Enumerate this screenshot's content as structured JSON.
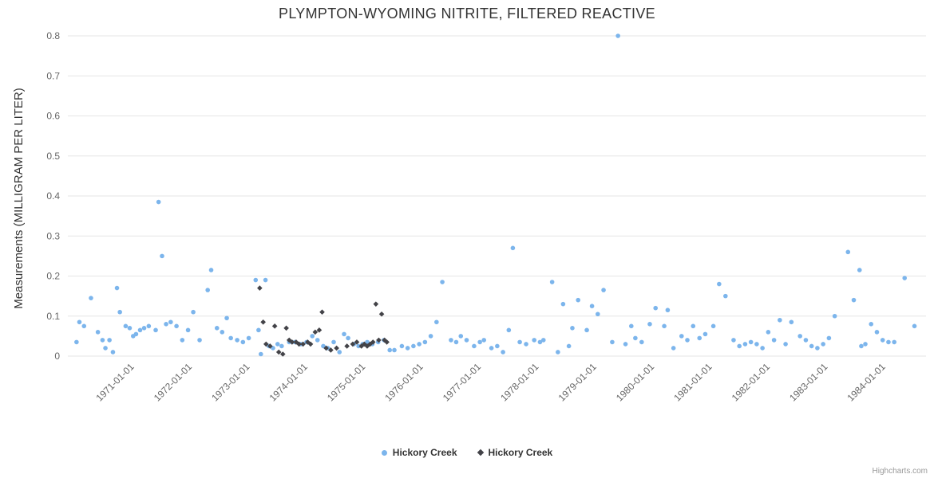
{
  "credits": "Highcharts.com",
  "colors": {
    "grid": "#e6e6e6",
    "tick_label": "#666666",
    "title": "#333333",
    "credits": "#999999"
  },
  "legend": {
    "items": [
      {
        "label": "Hickory Creek",
        "marker": "circle",
        "color": "#7cb5ec"
      },
      {
        "label": "Hickory Creek",
        "marker": "diamond",
        "color": "#434348"
      }
    ]
  },
  "chart_data": {
    "type": "scatter",
    "title": "PLYMPTON-WYOMING NITRITE, FILTERED REACTIVE",
    "xlabel": "",
    "ylabel": "Measurements (MILLIGRAM PER LITER)",
    "ylim": [
      0,
      0.8
    ],
    "yticks": [
      0,
      0.1,
      0.2,
      0.3,
      0.4,
      0.5,
      0.6,
      0.7,
      0.8
    ],
    "xlim": [
      1969.9,
      1984.75
    ],
    "grid": true,
    "legend_position": "bottom",
    "xticks": [
      {
        "x": 1971,
        "label": "1971-01-01"
      },
      {
        "x": 1972,
        "label": "1972-01-01"
      },
      {
        "x": 1973,
        "label": "1973-01-01"
      },
      {
        "x": 1974,
        "label": "1974-01-01"
      },
      {
        "x": 1975,
        "label": "1975-01-01"
      },
      {
        "x": 1976,
        "label": "1976-01-01"
      },
      {
        "x": 1977,
        "label": "1977-01-01"
      },
      {
        "x": 1978,
        "label": "1978-01-01"
      },
      {
        "x": 1979,
        "label": "1979-01-01"
      },
      {
        "x": 1980,
        "label": "1980-01-01"
      },
      {
        "x": 1981,
        "label": "1981-01-01"
      },
      {
        "x": 1982,
        "label": "1982-01-01"
      },
      {
        "x": 1983,
        "label": "1983-01-01"
      },
      {
        "x": 1984,
        "label": "1984-01-01"
      }
    ],
    "series": [
      {
        "name": "Hickory Creek",
        "marker": "circle",
        "color": "#7cb5ec",
        "points": [
          [
            1970.05,
            0.035
          ],
          [
            1970.1,
            0.085
          ],
          [
            1970.18,
            0.075
          ],
          [
            1970.3,
            0.145
          ],
          [
            1970.42,
            0.06
          ],
          [
            1970.5,
            0.04
          ],
          [
            1970.55,
            0.02
          ],
          [
            1970.62,
            0.04
          ],
          [
            1970.68,
            0.01
          ],
          [
            1970.75,
            0.17
          ],
          [
            1970.8,
            0.11
          ],
          [
            1970.9,
            0.075
          ],
          [
            1970.97,
            0.07
          ],
          [
            1971.03,
            0.05
          ],
          [
            1971.08,
            0.055
          ],
          [
            1971.15,
            0.065
          ],
          [
            1971.22,
            0.07
          ],
          [
            1971.3,
            0.075
          ],
          [
            1971.42,
            0.065
          ],
          [
            1971.47,
            0.385
          ],
          [
            1971.53,
            0.25
          ],
          [
            1971.6,
            0.08
          ],
          [
            1971.68,
            0.085
          ],
          [
            1971.78,
            0.075
          ],
          [
            1971.88,
            0.04
          ],
          [
            1971.98,
            0.065
          ],
          [
            1972.07,
            0.11
          ],
          [
            1972.18,
            0.04
          ],
          [
            1972.32,
            0.165
          ],
          [
            1972.38,
            0.215
          ],
          [
            1972.48,
            0.07
          ],
          [
            1972.57,
            0.06
          ],
          [
            1972.65,
            0.095
          ],
          [
            1972.72,
            0.045
          ],
          [
            1972.83,
            0.04
          ],
          [
            1972.93,
            0.035
          ],
          [
            1973.03,
            0.045
          ],
          [
            1973.15,
            0.19
          ],
          [
            1973.2,
            0.065
          ],
          [
            1973.24,
            0.005
          ],
          [
            1973.32,
            0.19
          ],
          [
            1973.38,
            0.025
          ],
          [
            1973.45,
            0.02
          ],
          [
            1973.53,
            0.03
          ],
          [
            1973.6,
            0.025
          ],
          [
            1973.73,
            0.035
          ],
          [
            1973.83,
            0.035
          ],
          [
            1973.93,
            0.03
          ],
          [
            1974.03,
            0.035
          ],
          [
            1974.13,
            0.05
          ],
          [
            1974.22,
            0.04
          ],
          [
            1974.32,
            0.025
          ],
          [
            1974.4,
            0.02
          ],
          [
            1974.5,
            0.035
          ],
          [
            1974.6,
            0.01
          ],
          [
            1974.68,
            0.055
          ],
          [
            1974.75,
            0.045
          ],
          [
            1974.85,
            0.03
          ],
          [
            1974.93,
            0.025
          ],
          [
            1975.0,
            0.03
          ],
          [
            1975.08,
            0.035
          ],
          [
            1975.17,
            0.03
          ],
          [
            1975.27,
            0.035
          ],
          [
            1975.37,
            0.04
          ],
          [
            1975.47,
            0.015
          ],
          [
            1975.55,
            0.015
          ],
          [
            1975.68,
            0.025
          ],
          [
            1975.78,
            0.02
          ],
          [
            1975.88,
            0.025
          ],
          [
            1975.98,
            0.03
          ],
          [
            1976.08,
            0.035
          ],
          [
            1976.18,
            0.05
          ],
          [
            1976.28,
            0.085
          ],
          [
            1976.38,
            0.185
          ],
          [
            1976.53,
            0.04
          ],
          [
            1976.62,
            0.035
          ],
          [
            1976.7,
            0.05
          ],
          [
            1976.8,
            0.04
          ],
          [
            1976.93,
            0.025
          ],
          [
            1977.03,
            0.035
          ],
          [
            1977.1,
            0.04
          ],
          [
            1977.23,
            0.02
          ],
          [
            1977.33,
            0.025
          ],
          [
            1977.43,
            0.01
          ],
          [
            1977.53,
            0.065
          ],
          [
            1977.6,
            0.27
          ],
          [
            1977.72,
            0.035
          ],
          [
            1977.83,
            0.03
          ],
          [
            1977.97,
            0.04
          ],
          [
            1978.07,
            0.035
          ],
          [
            1978.13,
            0.04
          ],
          [
            1978.28,
            0.185
          ],
          [
            1978.38,
            0.01
          ],
          [
            1978.47,
            0.13
          ],
          [
            1978.57,
            0.025
          ],
          [
            1978.63,
            0.07
          ],
          [
            1978.73,
            0.14
          ],
          [
            1978.88,
            0.065
          ],
          [
            1978.97,
            0.125
          ],
          [
            1979.07,
            0.105
          ],
          [
            1979.17,
            0.165
          ],
          [
            1979.32,
            0.035
          ],
          [
            1979.42,
            0.8
          ],
          [
            1979.55,
            0.03
          ],
          [
            1979.65,
            0.075
          ],
          [
            1979.72,
            0.045
          ],
          [
            1979.83,
            0.035
          ],
          [
            1979.97,
            0.08
          ],
          [
            1980.07,
            0.12
          ],
          [
            1980.22,
            0.075
          ],
          [
            1980.28,
            0.115
          ],
          [
            1980.38,
            0.02
          ],
          [
            1980.52,
            0.05
          ],
          [
            1980.62,
            0.04
          ],
          [
            1980.72,
            0.075
          ],
          [
            1980.83,
            0.045
          ],
          [
            1980.93,
            0.055
          ],
          [
            1981.07,
            0.075
          ],
          [
            1981.17,
            0.18
          ],
          [
            1981.28,
            0.15
          ],
          [
            1981.42,
            0.04
          ],
          [
            1981.52,
            0.025
          ],
          [
            1981.62,
            0.03
          ],
          [
            1981.72,
            0.035
          ],
          [
            1981.82,
            0.03
          ],
          [
            1981.92,
            0.02
          ],
          [
            1982.02,
            0.06
          ],
          [
            1982.12,
            0.04
          ],
          [
            1982.22,
            0.09
          ],
          [
            1982.32,
            0.03
          ],
          [
            1982.42,
            0.085
          ],
          [
            1982.57,
            0.05
          ],
          [
            1982.67,
            0.04
          ],
          [
            1982.77,
            0.025
          ],
          [
            1982.87,
            0.02
          ],
          [
            1982.97,
            0.03
          ],
          [
            1983.07,
            0.045
          ],
          [
            1983.17,
            0.1
          ],
          [
            1983.4,
            0.26
          ],
          [
            1983.5,
            0.14
          ],
          [
            1983.6,
            0.215
          ],
          [
            1983.63,
            0.025
          ],
          [
            1983.7,
            0.03
          ],
          [
            1983.8,
            0.08
          ],
          [
            1983.9,
            0.06
          ],
          [
            1984.0,
            0.04
          ],
          [
            1984.1,
            0.035
          ],
          [
            1984.2,
            0.035
          ],
          [
            1984.38,
            0.195
          ],
          [
            1984.55,
            0.075
          ]
        ]
      },
      {
        "name": "Hickory Creek",
        "marker": "diamond",
        "color": "#434348",
        "points": [
          [
            1973.22,
            0.17
          ],
          [
            1973.28,
            0.085
          ],
          [
            1973.33,
            0.03
          ],
          [
            1973.4,
            0.025
          ],
          [
            1973.48,
            0.075
          ],
          [
            1973.55,
            0.01
          ],
          [
            1973.62,
            0.005
          ],
          [
            1973.68,
            0.07
          ],
          [
            1973.73,
            0.04
          ],
          [
            1973.78,
            0.035
          ],
          [
            1973.85,
            0.035
          ],
          [
            1973.9,
            0.03
          ],
          [
            1973.97,
            0.03
          ],
          [
            1974.05,
            0.035
          ],
          [
            1974.1,
            0.03
          ],
          [
            1974.18,
            0.06
          ],
          [
            1974.25,
            0.065
          ],
          [
            1974.3,
            0.11
          ],
          [
            1974.37,
            0.02
          ],
          [
            1974.45,
            0.015
          ],
          [
            1974.55,
            0.02
          ],
          [
            1974.73,
            0.025
          ],
          [
            1974.83,
            0.03
          ],
          [
            1974.9,
            0.035
          ],
          [
            1974.98,
            0.025
          ],
          [
            1975.03,
            0.03
          ],
          [
            1975.08,
            0.025
          ],
          [
            1975.13,
            0.03
          ],
          [
            1975.18,
            0.035
          ],
          [
            1975.23,
            0.13
          ],
          [
            1975.28,
            0.04
          ],
          [
            1975.33,
            0.105
          ],
          [
            1975.38,
            0.04
          ],
          [
            1975.42,
            0.035
          ]
        ]
      }
    ]
  }
}
